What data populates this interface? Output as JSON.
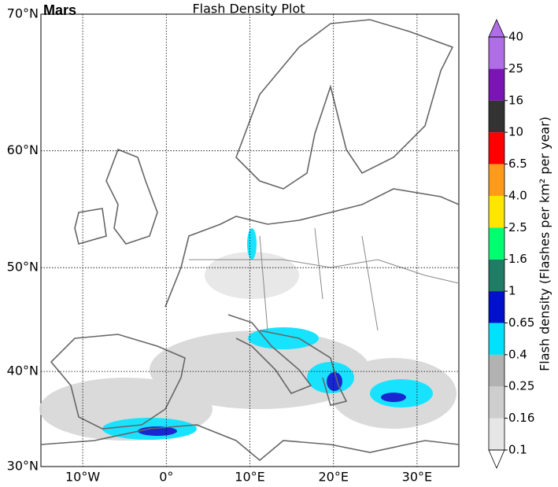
{
  "map": {
    "label": "Mars",
    "title": "Flash Density Plot",
    "lat_range": [
      30,
      70
    ],
    "lon_range": [
      -15,
      35
    ],
    "lat_ticks": [
      {
        "value": 30,
        "label": "30°N"
      },
      {
        "value": 40,
        "label": "40°N"
      },
      {
        "value": 50,
        "label": "50°N"
      },
      {
        "value": 60,
        "label": "60°N"
      },
      {
        "value": 70,
        "label": "70°N"
      }
    ],
    "lon_ticks": [
      {
        "value": -10,
        "label": "10°W"
      },
      {
        "value": 0,
        "label": "0°"
      },
      {
        "value": 10,
        "label": "10°E"
      },
      {
        "value": 20,
        "label": "20°E"
      },
      {
        "value": 30,
        "label": "30°E"
      }
    ],
    "grid": true,
    "colorbar": {
      "label": "Flash density (Flashes per km² per year)",
      "ticks": [
        0.1,
        0.16,
        0.25,
        0.4,
        0.65,
        1,
        1.6,
        2.5,
        {
          "value": 4,
          "label": "4.0"
        },
        6.5,
        10,
        16,
        25,
        40
      ],
      "colors": [
        "#e6e6e6",
        "#cecece",
        "#b2b2b2",
        "#00e0ff",
        "#0010cc",
        "#1e7d64",
        "#00ff70",
        "#ffe600",
        "#ff9a1a",
        "#ff0000",
        "#333333",
        "#7a14b4",
        "#b06ee6"
      ],
      "over_color": "#b06ee6",
      "under_color": "#ffffff"
    }
  }
}
